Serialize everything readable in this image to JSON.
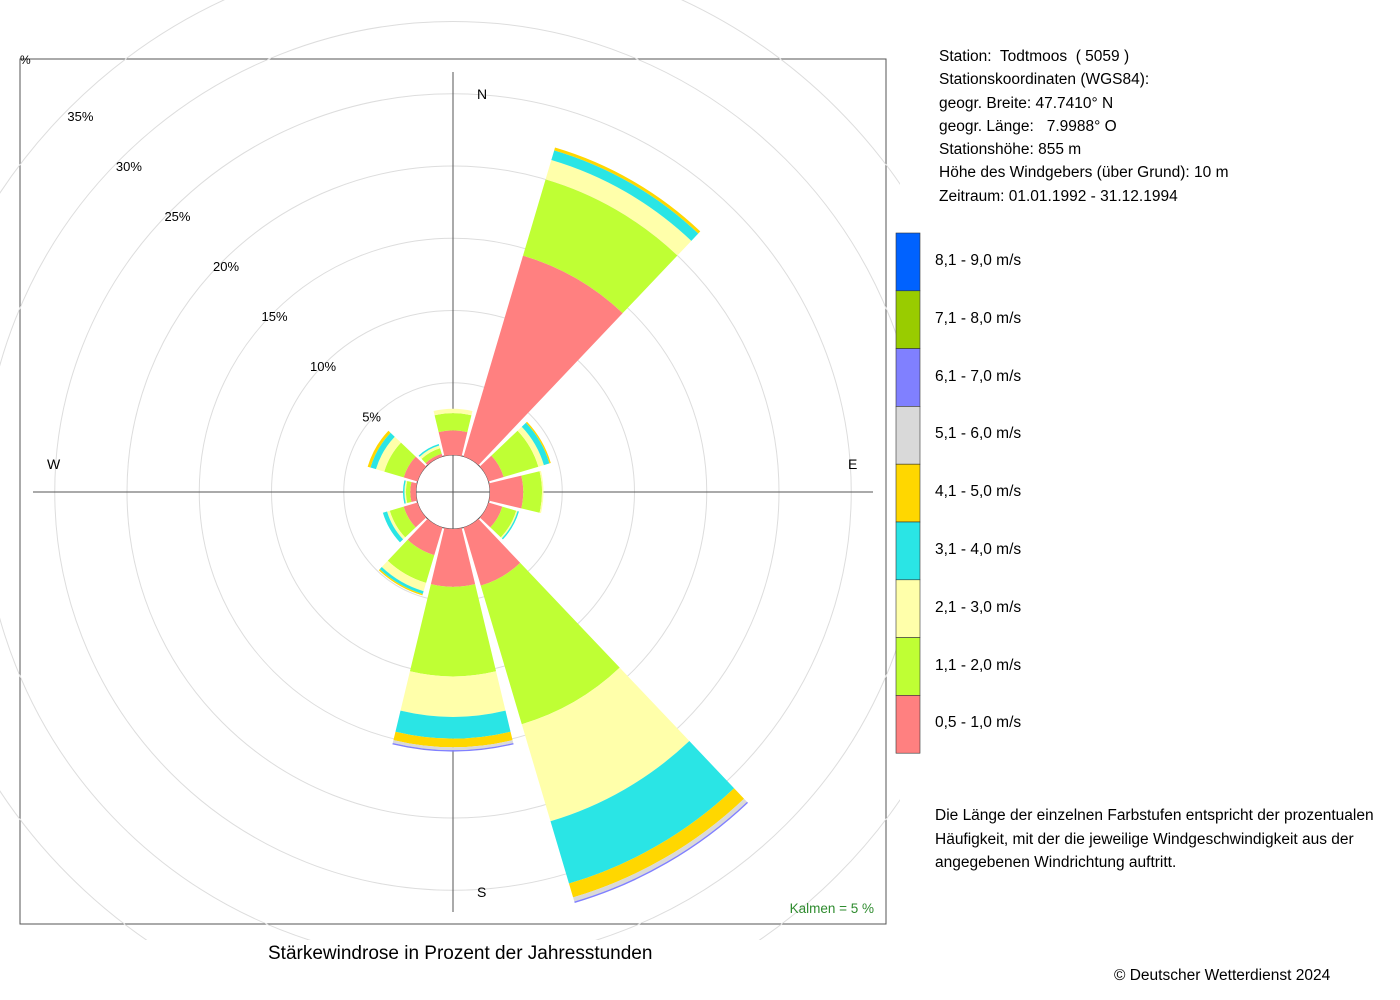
{
  "info": {
    "station": "Station:  Todtmoos  ( 5059 )",
    "coords_title": "Stationskoordinaten (WGS84):",
    "lat": "geogr. Breite: 47.7410° N",
    "lon": "geogr. Länge:   7.9988° O",
    "height": "Stationshöhe: 855 m",
    "sensor": "Höhe des Windgebers (über Grund): 10 m",
    "period": "Zeitraum: 01.01.1992 - 31.12.1994"
  },
  "legend": {
    "classes": [
      {
        "label": "8,1 - 9,0 m/s",
        "color": "#0062ff"
      },
      {
        "label": "7,1 - 8,0 m/s",
        "color": "#99cc00"
      },
      {
        "label": "6,1 - 7,0 m/s",
        "color": "#8080ff"
      },
      {
        "label": "5,1 - 6,0 m/s",
        "color": "#d9d9d9"
      },
      {
        "label": "4,1 - 5,0 m/s",
        "color": "#ffd700"
      },
      {
        "label": "3,1 - 4,0 m/s",
        "color": "#2ae5e5"
      },
      {
        "label": "2,1 - 3,0 m/s",
        "color": "#ffffaa"
      },
      {
        "label": "1,1 - 2,0 m/s",
        "color": "#bfff34"
      },
      {
        "label": "0,5 - 1,0 m/s",
        "color": "#ff8080"
      }
    ]
  },
  "note": "Die Länge der einzelnen Farbstufen entspricht der prozentualen Häufigkeit, mit der die jeweilige Windgeschwindigkeit aus der angegebenen Windrichtung auftritt.",
  "title": "Stärkewindrose in Prozent der Jahresstunden",
  "copyright": "© Deutscher Wetterdienst  2024",
  "chart_data": {
    "type": "wind_rose",
    "title": "Stärkewindrose in Prozent der Jahresstunden",
    "calm_label": "Kalmen  =  5 %",
    "calm_percent": 5,
    "unit_label": "%",
    "ring_labels": [
      "5%",
      "10%",
      "15%",
      "20%",
      "25%",
      "30%",
      "35%"
    ],
    "ring_values": [
      5,
      10,
      15,
      20,
      25,
      30,
      35
    ],
    "compass": {
      "N": "N",
      "E": "E",
      "S": "S",
      "W": "W"
    },
    "speed_classes": [
      "0,5 - 1,0 m/s",
      "1,1 - 2,0 m/s",
      "2,1 - 3,0 m/s",
      "3,1 - 4,0 m/s",
      "4,1 - 5,0 m/s",
      "5,1 - 6,0 m/s",
      "6,1 - 7,0 m/s",
      "7,1 - 8,0 m/s",
      "8,1 - 9,0 m/s"
    ],
    "colors": [
      "#ff8080",
      "#bfff34",
      "#ffffaa",
      "#2ae5e5",
      "#ffd700",
      "#d9d9d9",
      "#8080ff",
      "#99cc00",
      "#0062ff"
    ],
    "sectors": [
      {
        "direction_deg": 0,
        "values": [
          1.7,
          1.2,
          0.3,
          0.0,
          0.0,
          0.0,
          0.0,
          0.0,
          0.0
        ]
      },
      {
        "direction_deg": 30,
        "values": [
          14.5,
          5.5,
          1.4,
          0.7,
          0.2,
          0.0,
          0.0,
          0.0,
          0.0
        ]
      },
      {
        "direction_deg": 60,
        "values": [
          1.1,
          2.5,
          0.4,
          0.4,
          0.1,
          0.0,
          0.0,
          0.0,
          0.0
        ]
      },
      {
        "direction_deg": 90,
        "values": [
          2.3,
          1.3,
          0.1,
          0.0,
          0.0,
          0.0,
          0.0,
          0.0,
          0.0
        ]
      },
      {
        "direction_deg": 120,
        "values": [
          1.0,
          1.0,
          0.1,
          0.1,
          0.0,
          0.0,
          0.0,
          0.0,
          0.0
        ]
      },
      {
        "direction_deg": 150,
        "values": [
          4.2,
          10.0,
          7.0,
          4.5,
          1.0,
          0.3,
          0.1,
          0.0,
          0.0
        ]
      },
      {
        "direction_deg": 180,
        "values": [
          4.0,
          6.2,
          2.8,
          1.5,
          0.6,
          0.2,
          0.1,
          0.0,
          0.0
        ]
      },
      {
        "direction_deg": 210,
        "values": [
          2.0,
          2.0,
          0.6,
          0.2,
          0.1,
          0.0,
          0.0,
          0.0,
          0.0
        ]
      },
      {
        "direction_deg": 240,
        "values": [
          1.0,
          1.0,
          0.2,
          0.3,
          0.0,
          0.0,
          0.0,
          0.0,
          0.0
        ]
      },
      {
        "direction_deg": 270,
        "values": [
          0.4,
          0.3,
          0.1,
          0.1,
          0.0,
          0.0,
          0.0,
          0.0,
          0.0
        ]
      },
      {
        "direction_deg": 300,
        "values": [
          1.0,
          1.4,
          0.6,
          0.4,
          0.2,
          0.0,
          0.0,
          0.0,
          0.0
        ]
      },
      {
        "direction_deg": 330,
        "values": [
          0.2,
          0.4,
          0.2,
          0.1,
          0.0,
          0.0,
          0.0,
          0.0,
          0.0
        ]
      }
    ]
  }
}
